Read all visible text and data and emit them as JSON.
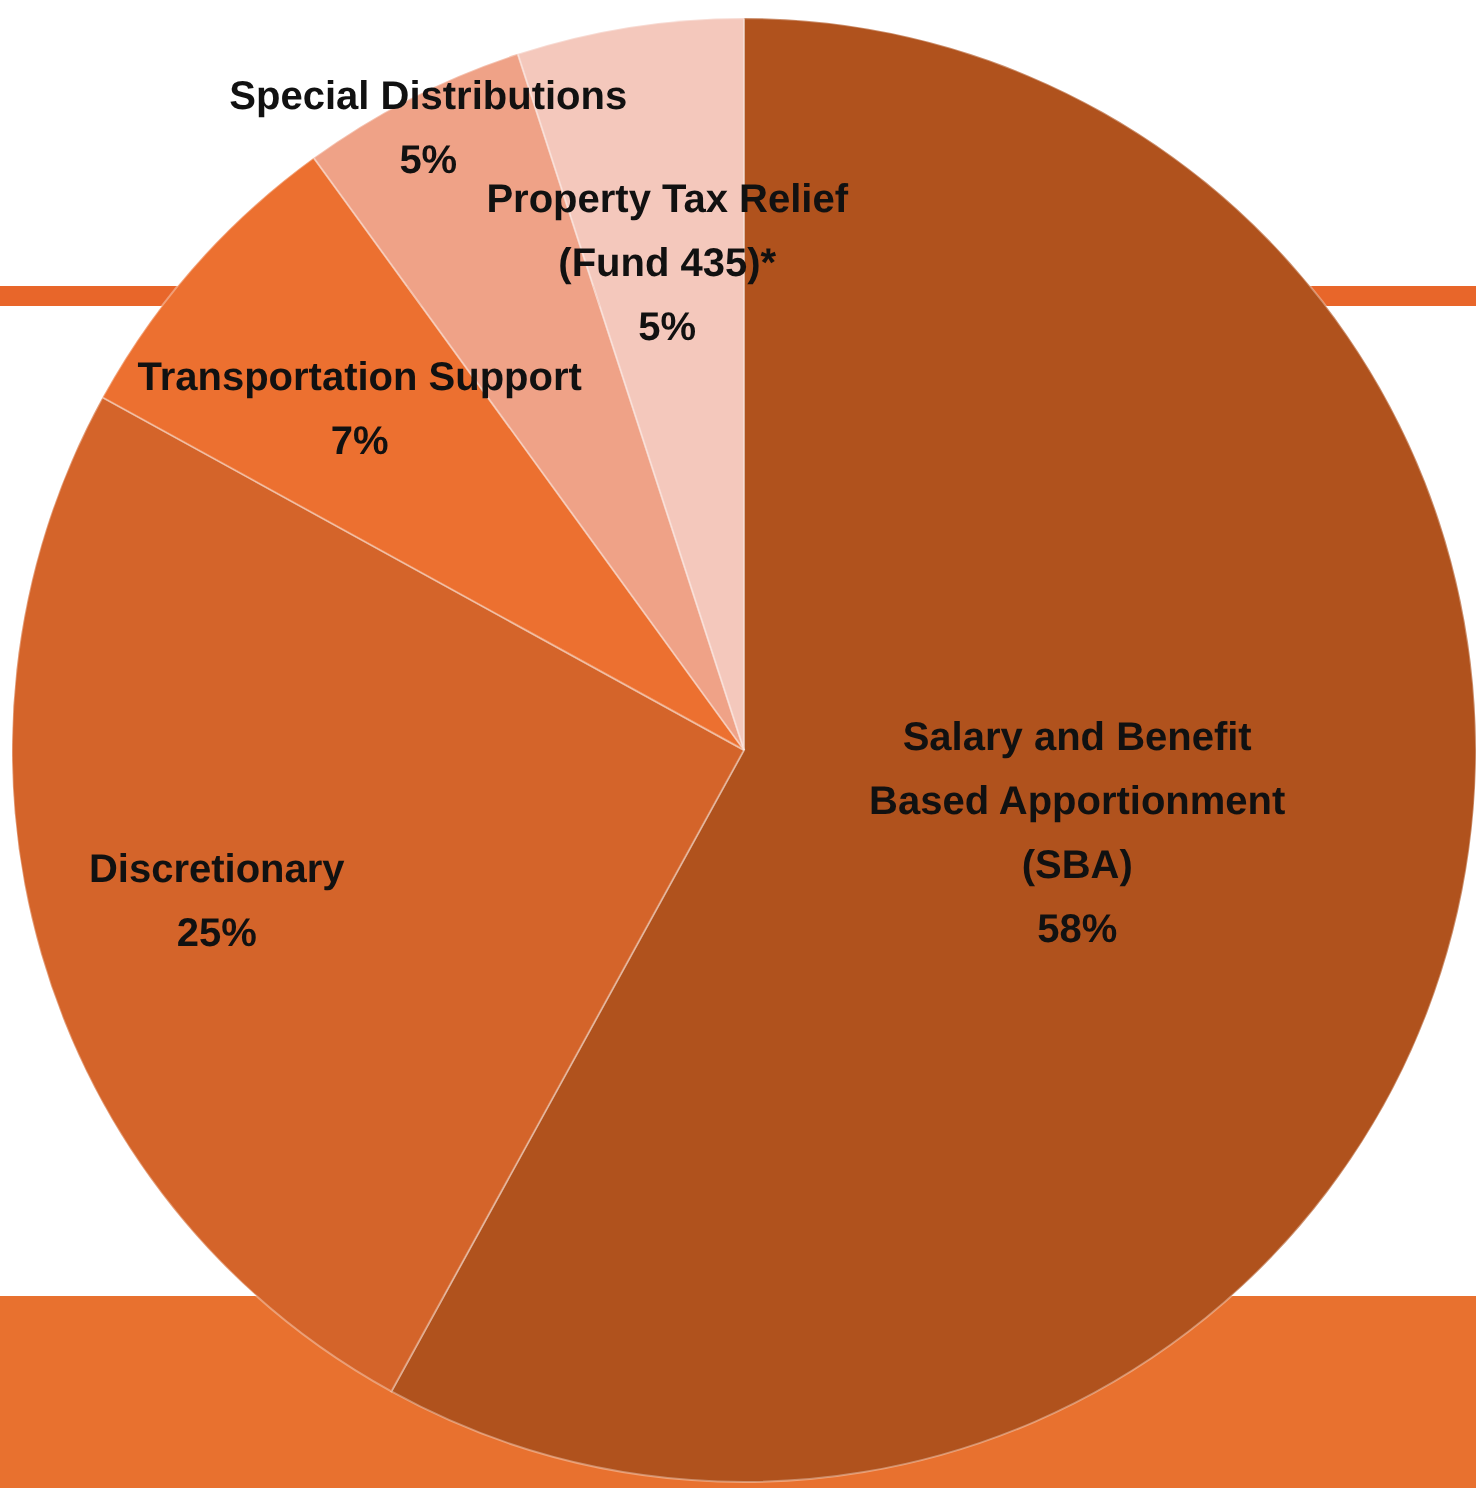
{
  "chart_data": {
    "type": "pie",
    "categories": [
      "Salary and Benefit\nBased Apportionment\n(SBA)",
      "Discretionary",
      "Transportation  Support",
      "Special Distributions",
      "Property Tax Relief\n(Fund 435)*"
    ],
    "values": [
      58,
      25,
      7,
      5,
      5
    ],
    "value_labels": [
      "58%",
      "25%",
      "7%",
      "5%",
      "5%"
    ],
    "colors": [
      "#b0521d",
      "#d4642a",
      "#ec7030",
      "#efa287",
      "#f4c8bc"
    ]
  }
}
